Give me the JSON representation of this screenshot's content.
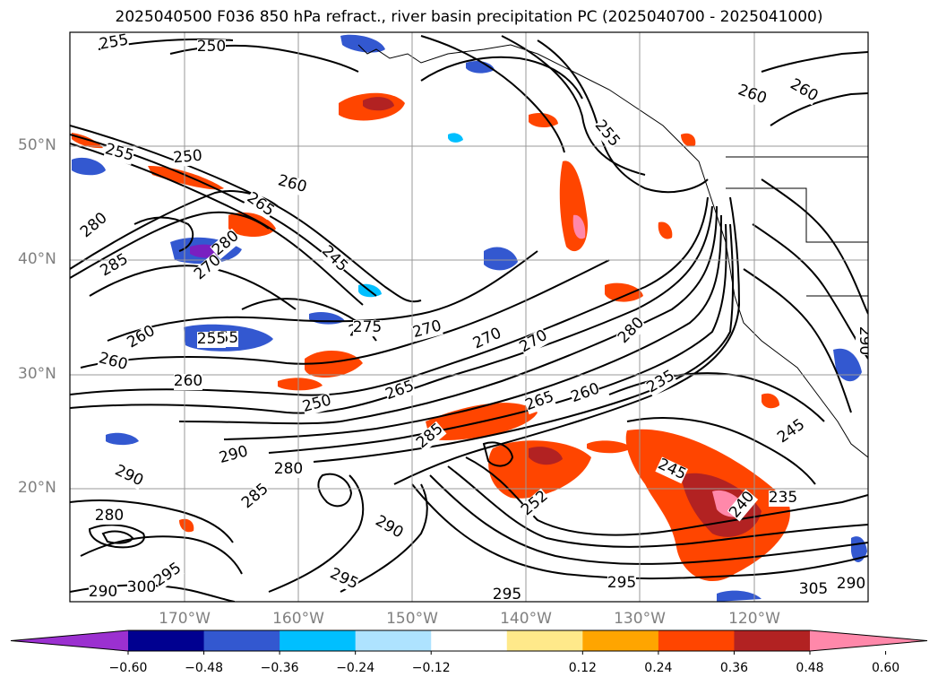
{
  "title": "2025040500 F036 850 hPa refract., river basin precipitation PC (2025040700 - 2025041000)",
  "lat_labels": [
    "50°N",
    "40°N",
    "30°N",
    "20°N"
  ],
  "lon_labels": [
    "170°W",
    "160°W",
    "150°W",
    "140°W",
    "130°W",
    "120°W"
  ],
  "colorbar": {
    "ticks": [
      "−0.60",
      "−0.48",
      "−0.36",
      "−0.24",
      "−0.12",
      "0.12",
      "0.24",
      "0.36",
      "0.48",
      "0.60"
    ],
    "colors": [
      "#9b30d0",
      "#000090",
      "#3358d0",
      "#00bfff",
      "#aee3ff",
      "#ffffff",
      "#ffe98a",
      "#ffa500",
      "#ff4500",
      "#b22222",
      "#ff88aa"
    ]
  },
  "contour_labels": [
    "255",
    "250",
    "255",
    "250",
    "260",
    "265",
    "275",
    "280",
    "285",
    "280",
    "245",
    "260",
    "255",
    "260",
    "260",
    "275",
    "270",
    "270",
    "270",
    "280",
    "235",
    "265",
    "260",
    "265",
    "285",
    "255",
    "250",
    "290",
    "290",
    "280",
    "285",
    "290",
    "295",
    "252",
    "245",
    "240",
    "235",
    "245",
    "260",
    "255",
    "260",
    "295",
    "295",
    "300",
    "290",
    "290",
    "305",
    "270",
    "280",
    "295",
    "290"
  ]
}
